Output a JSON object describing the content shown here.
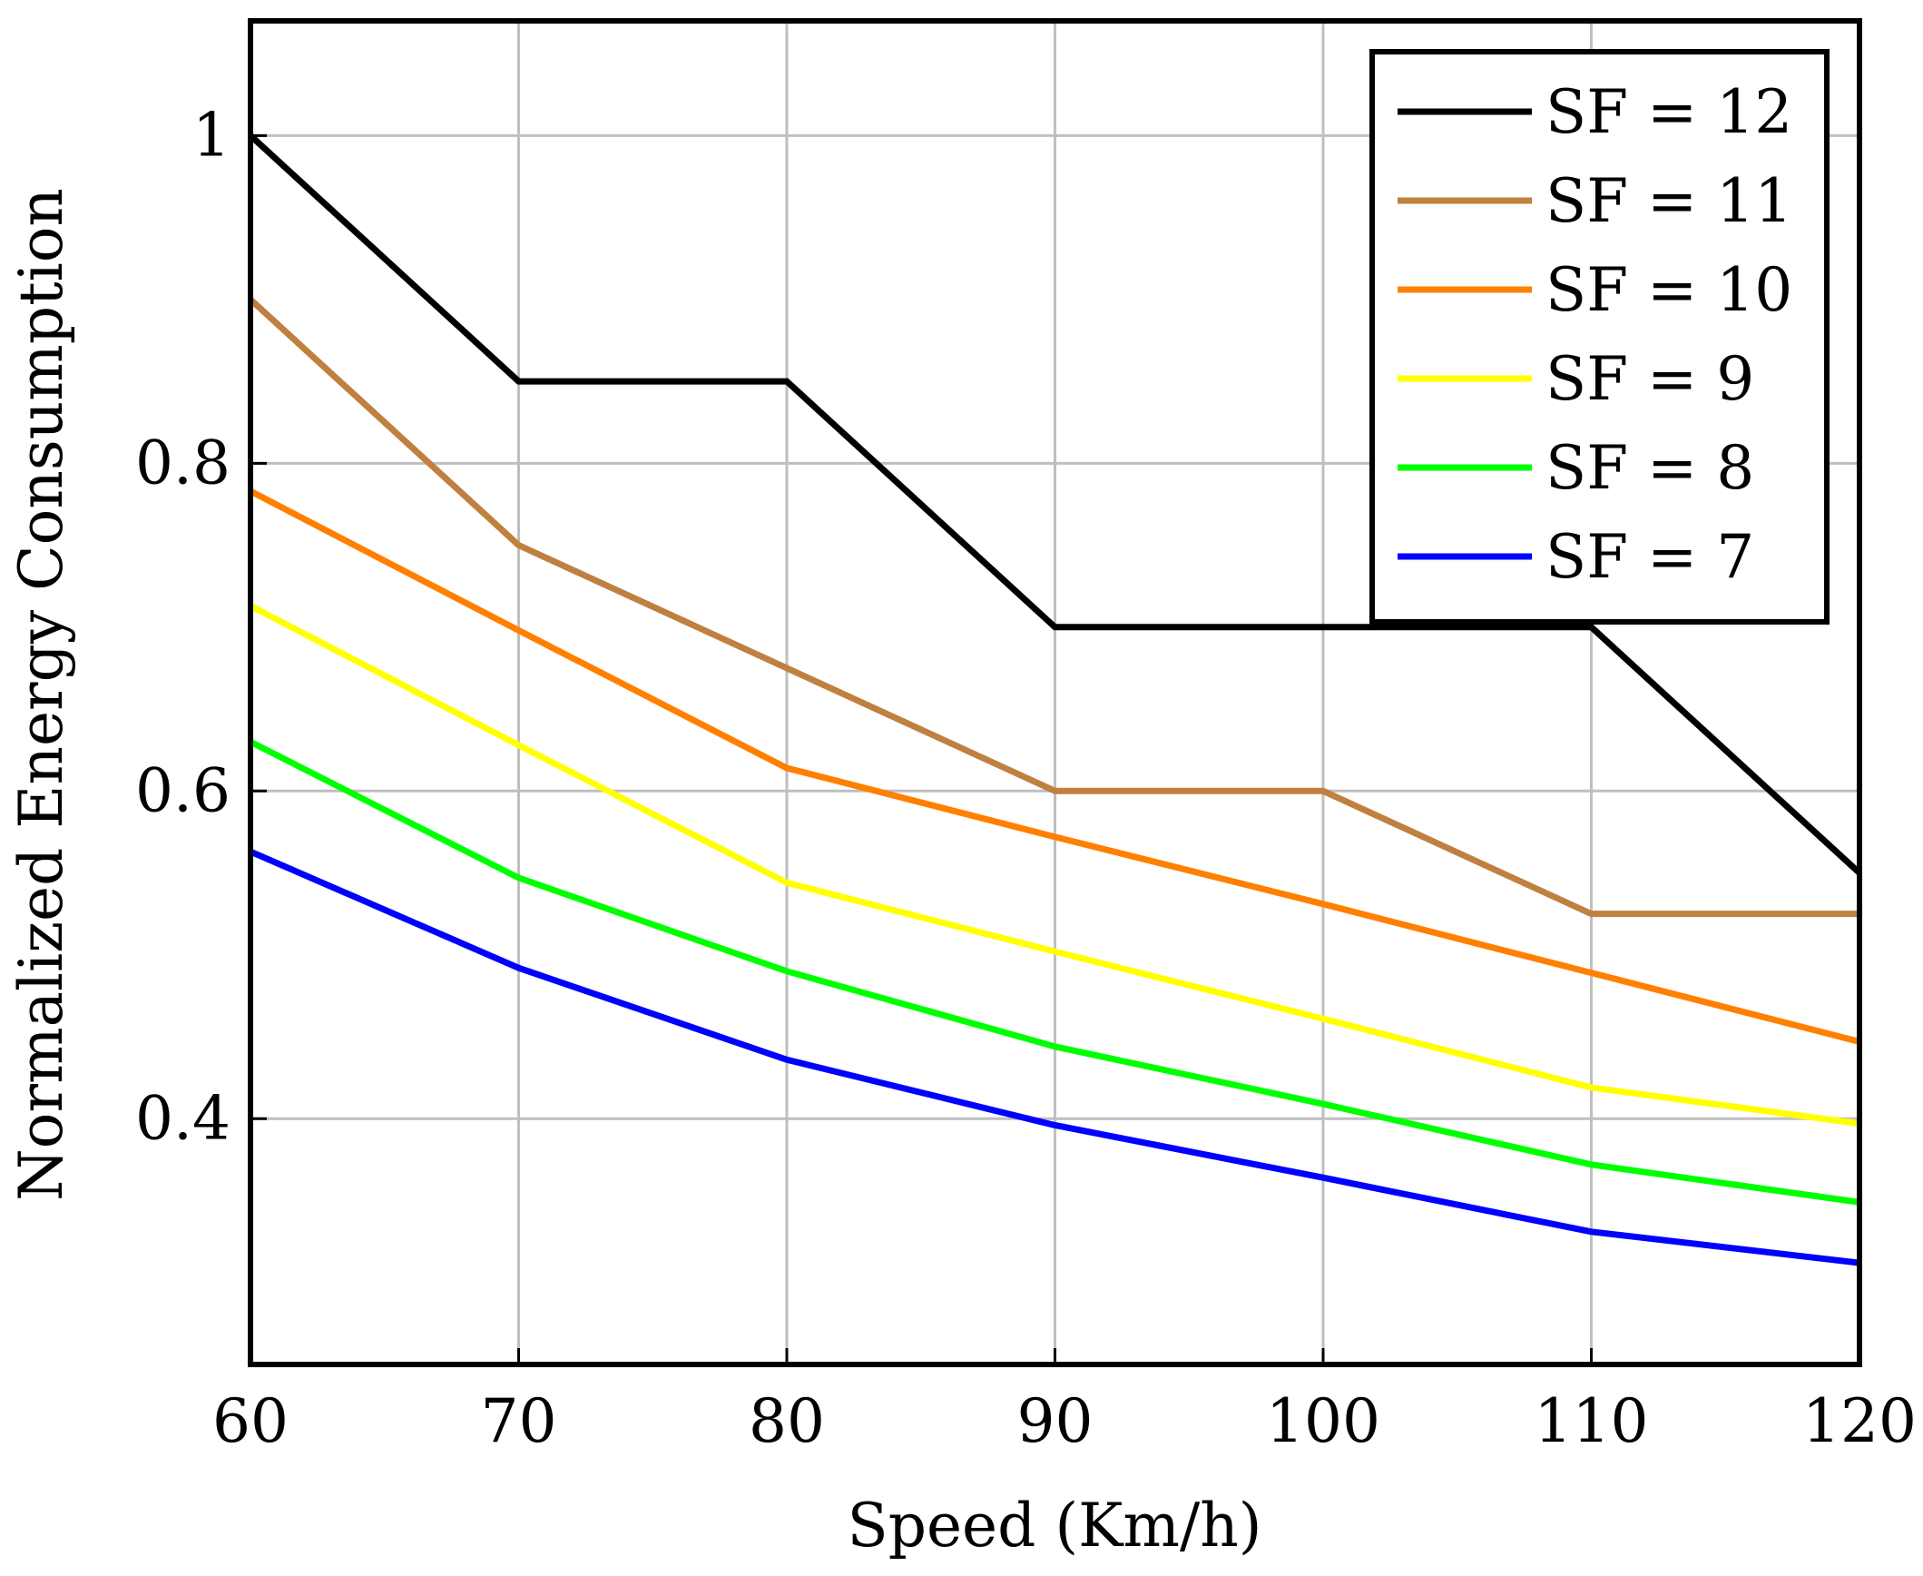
{
  "chart_data": {
    "type": "line",
    "title": "",
    "xlabel": "Speed (Km/h)",
    "ylabel": "Normalized Energy Consumption",
    "x": [
      60,
      70,
      80,
      90,
      100,
      110,
      120
    ],
    "xlim": [
      60,
      120
    ],
    "ylim": [
      0.25,
      1.07
    ],
    "xticks": [
      60,
      70,
      80,
      90,
      100,
      110,
      120
    ],
    "xtick_labels": [
      "60",
      "70",
      "80",
      "90",
      "100",
      "110",
      "120"
    ],
    "yticks": [
      0.4,
      0.6,
      0.8,
      1.0
    ],
    "ytick_labels": [
      "0.4",
      "0.6",
      "0.8",
      "1"
    ],
    "grid": true,
    "legend_position": "top-right",
    "series": [
      {
        "name": "SF = 12",
        "color": "#000000",
        "values": [
          1.0,
          0.85,
          0.85,
          0.7,
          0.7,
          0.7,
          0.55
        ]
      },
      {
        "name": "SF = 11",
        "color": "#bf8040",
        "values": [
          0.9,
          0.75,
          0.675,
          0.6,
          0.6,
          0.525,
          0.525
        ]
      },
      {
        "name": "SF = 10",
        "color": "#ff8000",
        "values": [
          0.783,
          0.698,
          0.614,
          0.572,
          0.531,
          0.489,
          0.447
        ]
      },
      {
        "name": "SF = 9",
        "color": "#ffff00",
        "values": [
          0.713,
          0.628,
          0.544,
          0.502,
          0.461,
          0.419,
          0.397
        ]
      },
      {
        "name": "SF = 8",
        "color": "#00ff00",
        "values": [
          0.63,
          0.547,
          0.49,
          0.444,
          0.409,
          0.372,
          0.349
        ]
      },
      {
        "name": "SF = 7",
        "color": "#0000ff",
        "values": [
          0.563,
          0.492,
          0.436,
          0.396,
          0.364,
          0.331,
          0.312
        ]
      }
    ]
  }
}
